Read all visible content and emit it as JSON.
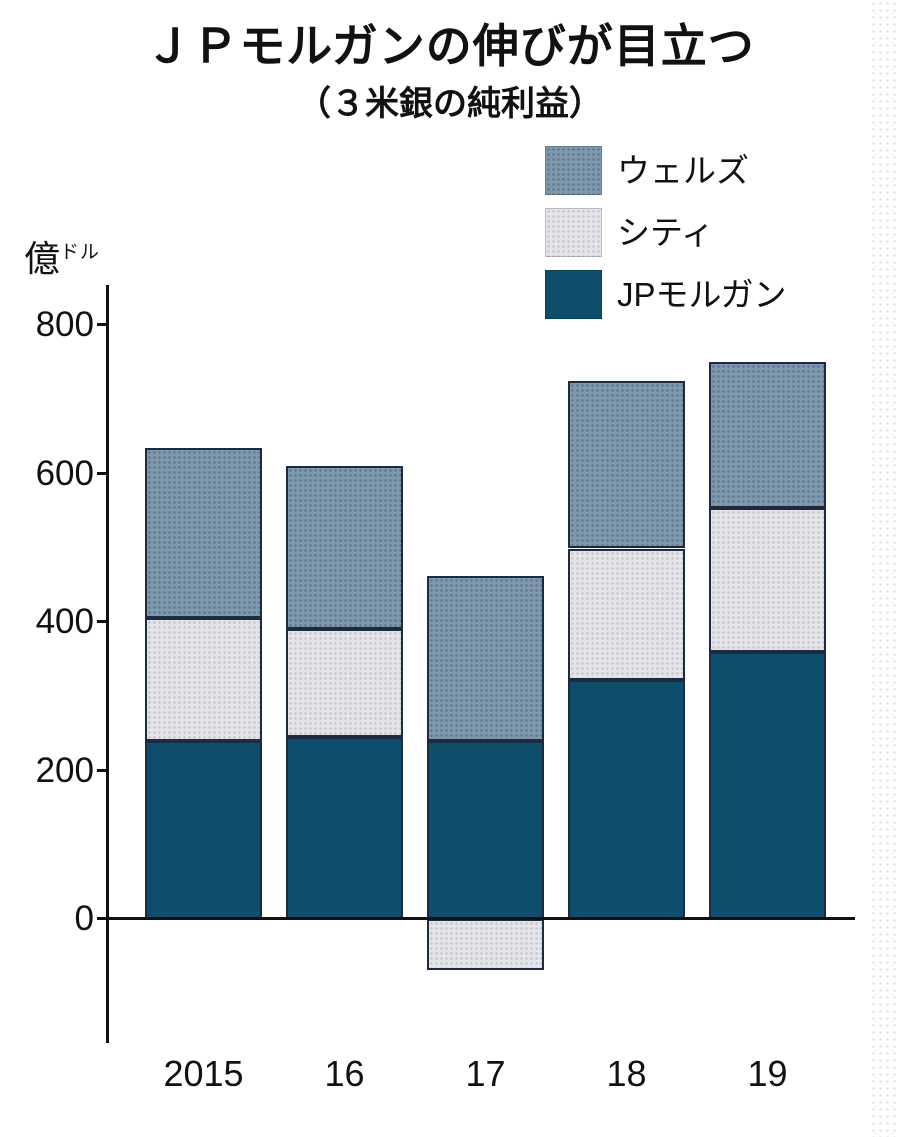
{
  "chart_data": {
    "type": "bar",
    "stacked": true,
    "title": "ＪＰモルガンの伸びが目立つ",
    "subtitle": "（３米銀の純利益）",
    "ylabel": "億ドル",
    "ylabel_main": "億",
    "ylabel_sub": "ドル",
    "ylim": [
      -170,
      850
    ],
    "yticks": [
      0,
      200,
      400,
      600,
      800
    ],
    "grid": false,
    "legend_position": "top-right",
    "legend_order": [
      "wells",
      "citi",
      "jpm"
    ],
    "categories": [
      "2015",
      "16",
      "17",
      "18",
      "19"
    ],
    "series": [
      {
        "key": "jpm",
        "name": "JPモルガン",
        "color": "#0e4d6b",
        "pattern": "none",
        "values": [
          240,
          245,
          240,
          322,
          360
        ]
      },
      {
        "key": "citi",
        "name": "シティ",
        "color": "#e4e4e9",
        "pattern": "dots-light",
        "values": [
          165,
          145,
          -68,
          177,
          193
        ]
      },
      {
        "key": "wells",
        "name": "ウェルズ",
        "color": "#7e98ae",
        "pattern": "dots-dark",
        "values": [
          230,
          220,
          222,
          226,
          197
        ]
      }
    ],
    "totals_positive": [
      635,
      610,
      462,
      725,
      750
    ]
  }
}
